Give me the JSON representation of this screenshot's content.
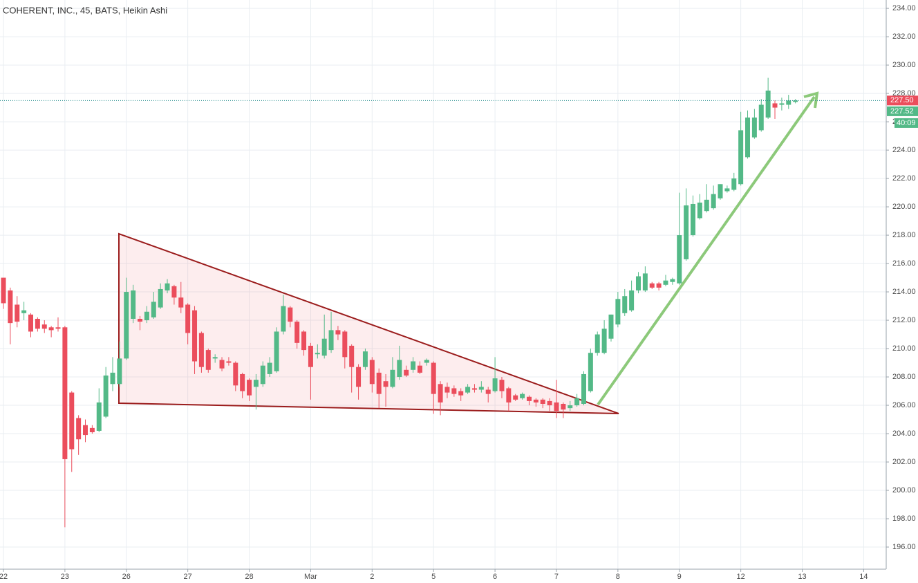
{
  "chart_data": {
    "type": "candlestick",
    "title": "COHERENT, INC., 45, BATS, Heikin Ashi",
    "up_color": "#53b987",
    "down_color": "#eb4d5c",
    "grid": true,
    "xlim": [
      -0.506,
      129.3
    ],
    "ylim": [
      194.44,
      234.59
    ],
    "xticks": [
      {
        "value": 0,
        "label": "22"
      },
      {
        "value": 9,
        "label": "23"
      },
      {
        "value": 18,
        "label": "26"
      },
      {
        "value": 27,
        "label": "27"
      },
      {
        "value": 36,
        "label": "28"
      },
      {
        "value": 45,
        "label": "Mar"
      },
      {
        "value": 54,
        "label": "2"
      },
      {
        "value": 63,
        "label": "5"
      },
      {
        "value": 72,
        "label": "6"
      },
      {
        "value": 81,
        "label": "7"
      },
      {
        "value": 90,
        "label": "8"
      },
      {
        "value": 99,
        "label": "9"
      },
      {
        "value": 108,
        "label": "12"
      },
      {
        "value": 117,
        "label": "13"
      },
      {
        "value": 126,
        "label": "14"
      }
    ],
    "yticks": [
      {
        "value": 196,
        "label": "196.00"
      },
      {
        "value": 198,
        "label": "198.00"
      },
      {
        "value": 200,
        "label": "200.00"
      },
      {
        "value": 202,
        "label": "202.00"
      },
      {
        "value": 204,
        "label": "204.00"
      },
      {
        "value": 206,
        "label": "206.00"
      },
      {
        "value": 208,
        "label": "208.00"
      },
      {
        "value": 210,
        "label": "210.00"
      },
      {
        "value": 212,
        "label": "212.00"
      },
      {
        "value": 214,
        "label": "214.00"
      },
      {
        "value": 216,
        "label": "216.00"
      },
      {
        "value": 218,
        "label": "218.00"
      },
      {
        "value": 220,
        "label": "220.00"
      },
      {
        "value": 222,
        "label": "222.00"
      },
      {
        "value": 224,
        "label": "224.00"
      },
      {
        "value": 226,
        "label": "226.00"
      },
      {
        "value": 228,
        "label": "228.00"
      },
      {
        "value": 230,
        "label": "230.00"
      },
      {
        "value": 232,
        "label": "232.00"
      },
      {
        "value": 234,
        "label": "234.00"
      }
    ],
    "open": [
      215.0,
      214.1,
      213.1,
      212.5,
      212.4,
      212.1,
      211.7,
      211.5,
      211.5,
      211.5,
      206.9,
      205.1,
      204.6,
      204.4,
      204.2,
      205.2,
      207.5,
      207.5,
      209.3,
      212.1,
      212.1,
      212.0,
      212.2,
      212.9,
      214.1,
      214.4,
      213.6,
      213.1,
      212.7,
      211.1,
      209.9,
      209.3,
      209.2,
      209.1,
      209.0,
      208.2,
      207.8,
      207.3,
      207.5,
      208.2,
      208.4,
      211.2,
      212.9,
      211.9,
      211.2,
      210.2,
      209.6,
      209.5,
      209.9,
      211.3,
      211.2,
      210.2,
      208.7,
      208.7,
      209.2,
      208.3,
      207.7,
      207.3,
      208.0,
      208.5,
      208.5,
      208.8,
      209.0,
      209.0,
      207.5,
      207.3,
      207.2,
      207.0,
      206.9,
      207.2,
      207.1,
      207.1,
      207.0,
      207.8,
      207.2,
      206.7,
      206.5,
      206.6,
      206.4,
      206.4,
      206.3,
      206.2,
      206.1,
      205.8,
      206.0,
      206.1,
      207.0,
      209.7,
      209.7,
      210.7,
      211.7,
      212.5,
      212.7,
      214.1,
      214.1,
      214.6,
      214.6,
      214.5,
      214.7,
      214.6,
      216.3,
      218.0,
      219.2,
      219.7,
      219.9,
      220.6,
      221.1,
      221.2,
      221.6,
      223.5,
      224.9,
      225.4,
      226.3,
      227.3,
      227.2,
      227.2,
      227.4
    ],
    "high": [
      215.0,
      214.3,
      213.7,
      213.3,
      212.5,
      212.2,
      212.0,
      211.6,
      212.2,
      211.6,
      207.0,
      205.3,
      205.0,
      204.6,
      207.2,
      208.7,
      209.4,
      210.5,
      215.0,
      214.5,
      212.3,
      213.0,
      214.0,
      214.6,
      214.9,
      214.5,
      214.7,
      213.2,
      213.0,
      211.2,
      210.0,
      209.6,
      209.4,
      209.4,
      209.1,
      208.3,
      207.9,
      208.2,
      209.1,
      209.4,
      211.5,
      213.8,
      213.0,
      212.0,
      211.3,
      210.4,
      210.3,
      212.4,
      212.6,
      211.6,
      211.3,
      210.3,
      208.9,
      210.0,
      209.4,
      208.6,
      208.2,
      209.4,
      210.2,
      208.8,
      209.4,
      209.1,
      209.3,
      209.1,
      207.7,
      207.6,
      207.4,
      207.2,
      207.5,
      207.5,
      207.7,
      207.3,
      209.4,
      208.0,
      207.3,
      206.8,
      206.9,
      206.7,
      206.5,
      206.5,
      206.5,
      207.8,
      206.2,
      206.3,
      206.8,
      208.4,
      210.0,
      211.2,
      212.0,
      212.4,
      214.0,
      214.2,
      214.8,
      215.4,
      215.8,
      214.7,
      214.7,
      215.2,
      215.0,
      221.0,
      221.3,
      220.8,
      220.9,
      221.6,
      221.5,
      221.6,
      221.5,
      222.4,
      226.7,
      226.8,
      226.9,
      227.6,
      229.1,
      227.5,
      227.7,
      227.9,
      227.6
    ],
    "low": [
      212.8,
      210.3,
      211.5,
      212.0,
      210.8,
      211.2,
      211.1,
      210.8,
      211.2,
      197.4,
      201.3,
      202.5,
      203.4,
      204.0,
      204.1,
      205.1,
      207.0,
      207.3,
      209.2,
      211.8,
      211.3,
      211.8,
      212.1,
      212.8,
      213.9,
      213.1,
      212.5,
      210.3,
      208.2,
      208.3,
      208.3,
      209.0,
      208.4,
      208.8,
      207.0,
      206.5,
      206.3,
      205.7,
      207.3,
      208.0,
      208.3,
      211.0,
      211.5,
      210.0,
      209.5,
      206.4,
      209.3,
      209.3,
      209.7,
      210.6,
      208.6,
      206.9,
      206.4,
      208.5,
      206.9,
      205.8,
      205.9,
      207.2,
      207.8,
      208.0,
      208.3,
      208.2,
      208.8,
      205.4,
      205.3,
      206.5,
      206.6,
      206.3,
      206.8,
      206.9,
      206.9,
      206.2,
      206.9,
      206.5,
      205.6,
      206.3,
      206.4,
      206.0,
      205.9,
      205.8,
      205.6,
      205.1,
      205.1,
      205.6,
      205.9,
      206.0,
      206.9,
      209.5,
      209.6,
      210.5,
      211.5,
      212.3,
      212.6,
      213.9,
      214.0,
      214.2,
      214.1,
      214.4,
      214.5,
      214.5,
      216.2,
      217.9,
      219.1,
      219.6,
      219.8,
      220.5,
      221.0,
      221.1,
      221.5,
      223.4,
      224.8,
      225.3,
      226.2,
      226.2,
      226.8,
      226.9,
      227.3
    ],
    "close": [
      213.2,
      211.8,
      211.9,
      212.7,
      211.2,
      211.4,
      211.4,
      211.3,
      211.4,
      202.2,
      202.9,
      203.6,
      203.9,
      204.1,
      206.2,
      208.1,
      208.3,
      209.3,
      214.0,
      214.1,
      211.9,
      212.6,
      213.3,
      214.2,
      214.6,
      213.6,
      212.9,
      211.1,
      209.1,
      208.7,
      208.5,
      209.4,
      208.6,
      209.0,
      207.4,
      207.0,
      206.7,
      207.8,
      208.8,
      209.0,
      211.2,
      213.0,
      211.9,
      210.4,
      209.9,
      208.7,
      209.7,
      210.7,
      211.3,
      211.0,
      209.4,
      208.7,
      207.3,
      209.8,
      207.5,
      206.8,
      207.3,
      208.5,
      209.2,
      208.1,
      209.1,
      208.3,
      209.2,
      206.8,
      206.2,
      206.9,
      206.8,
      206.7,
      207.3,
      207.1,
      207.3,
      206.8,
      207.9,
      207.0,
      206.2,
      206.4,
      206.8,
      206.3,
      206.2,
      206.1,
      206.0,
      205.6,
      205.7,
      206.0,
      206.5,
      208.2,
      209.7,
      211.0,
      211.4,
      212.4,
      213.5,
      213.7,
      214.1,
      215.1,
      215.3,
      214.3,
      214.3,
      214.8,
      214.9,
      218.0,
      220.1,
      220.2,
      220.3,
      220.5,
      220.9,
      221.6,
      221.3,
      222.0,
      225.4,
      226.3,
      226.3,
      227.2,
      228.2,
      227.0,
      227.3,
      227.5,
      227.5
    ],
    "price_markers": [
      {
        "value": 227.5,
        "label": "227.50",
        "color": "#eb4d5c"
      },
      {
        "value": 227.52,
        "label": "227.52",
        "color": "#53b987"
      }
    ],
    "countdown": "40:09"
  }
}
